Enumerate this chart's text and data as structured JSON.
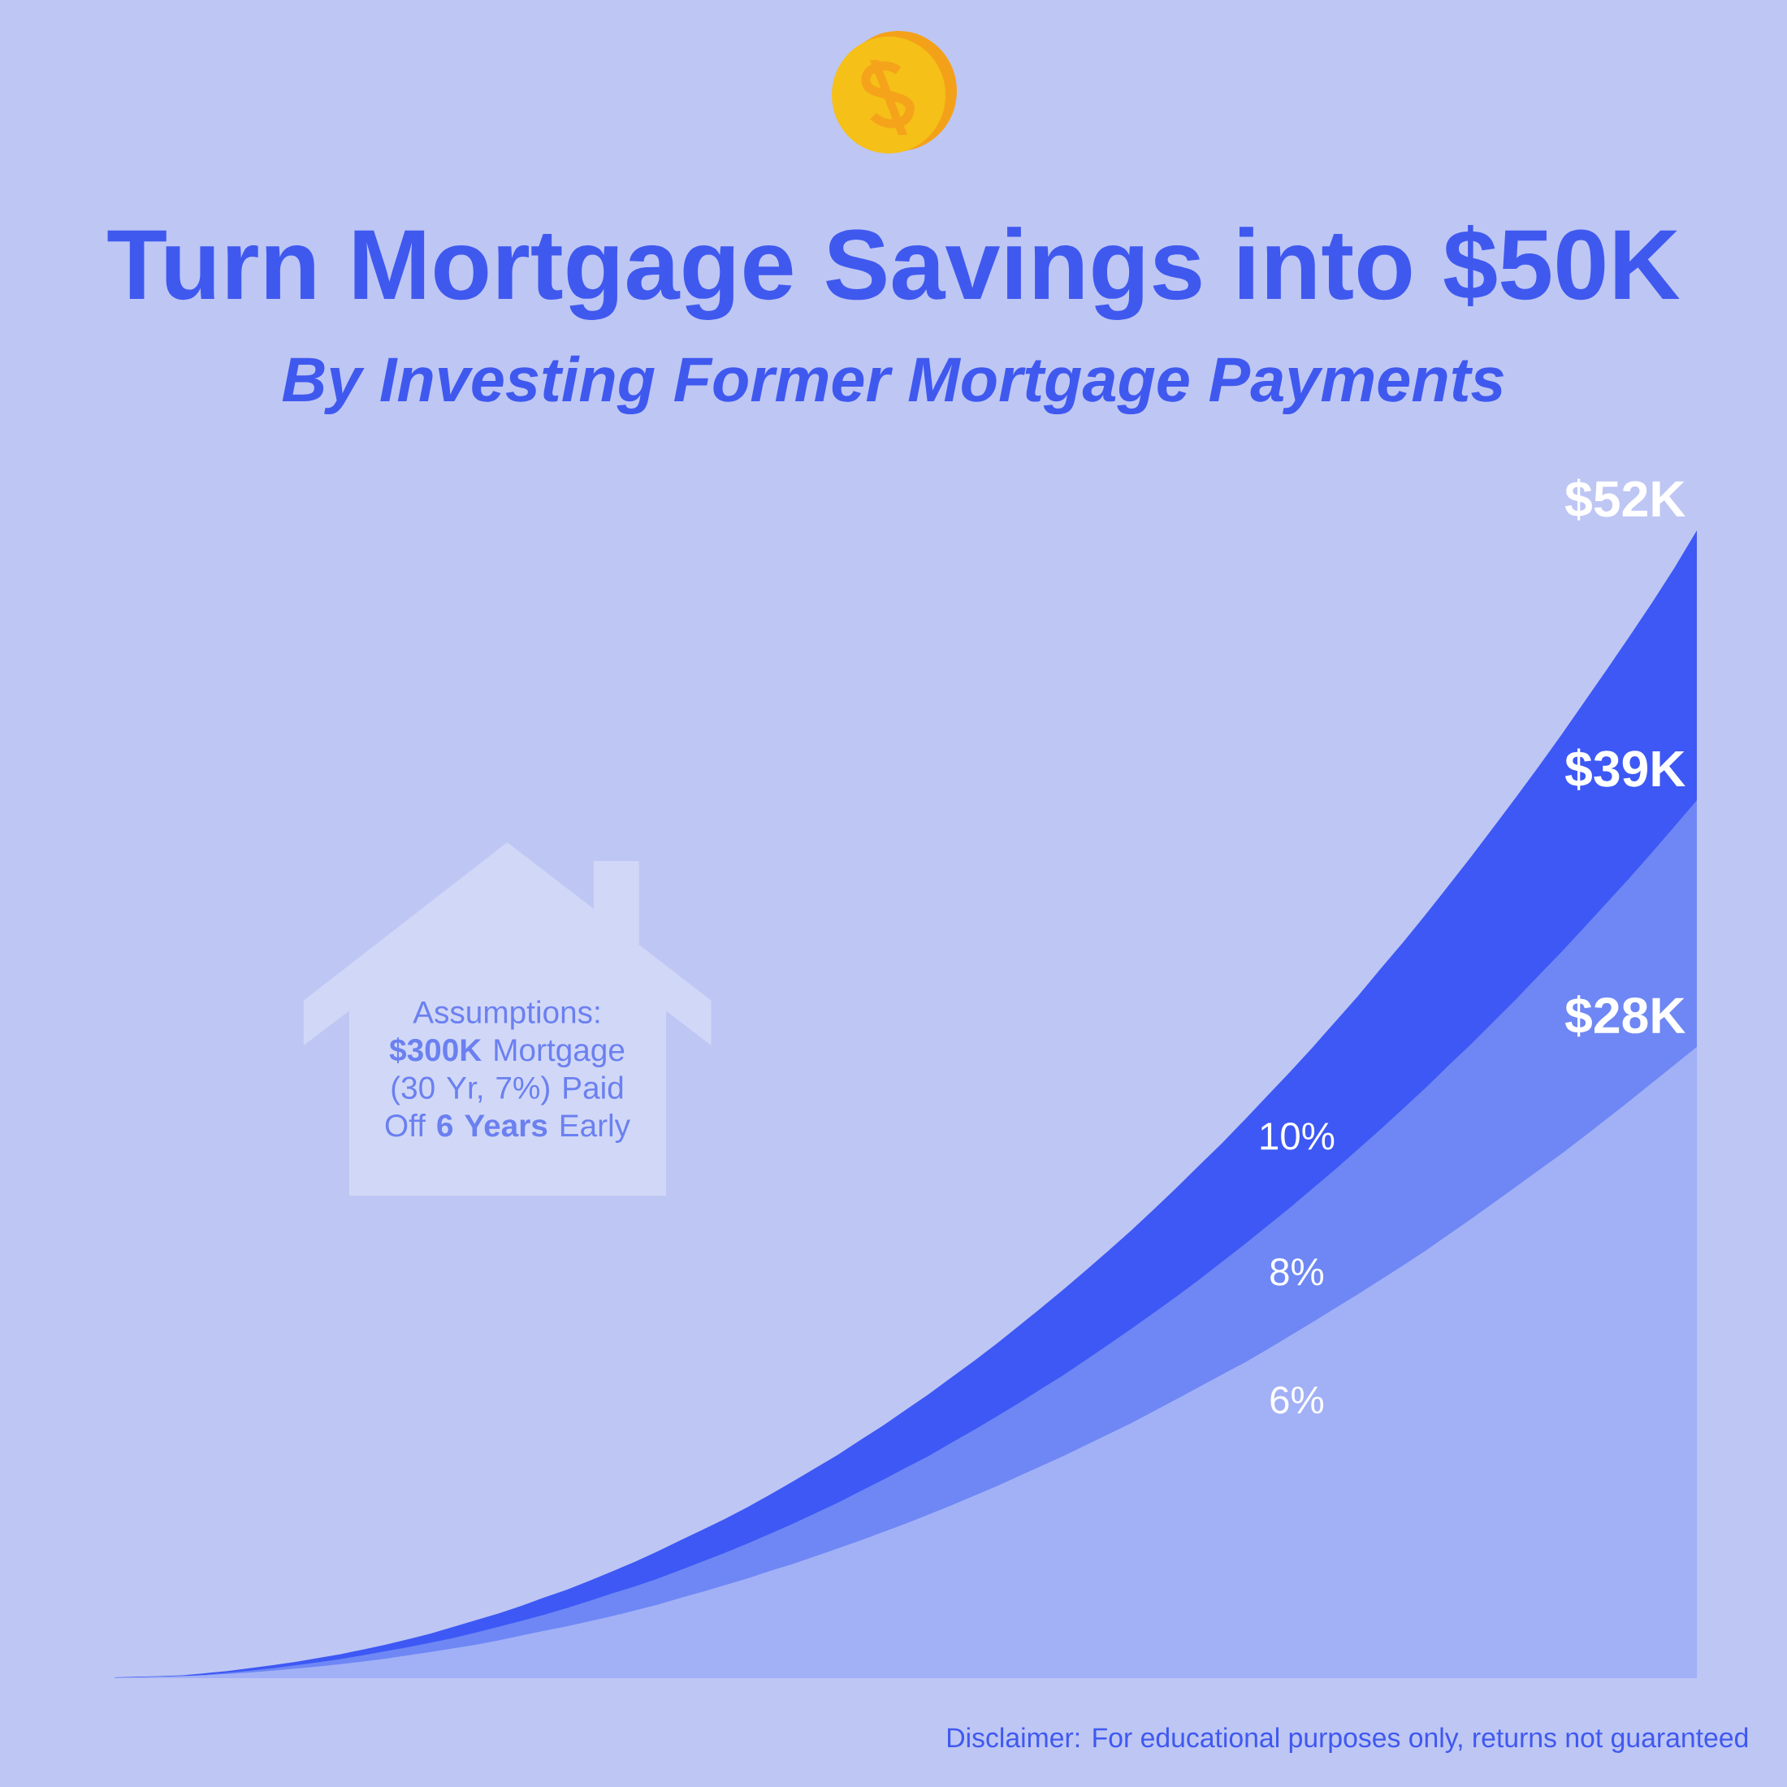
{
  "chart_data": {
    "type": "area",
    "title": "Turn Mortgage Savings into $50K",
    "subtitle": "By Investing Former Mortgage Payments",
    "categories": [
      null,
      null,
      null,
      null,
      null,
      null,
      null,
      null,
      null,
      null,
      null,
      null,
      null,
      null,
      null,
      null,
      null,
      null,
      null,
      null,
      null,
      null,
      null,
      null,
      null,
      null,
      null,
      null,
      null,
      null,
      null,
      null,
      null,
      null,
      null,
      null,
      null,
      null,
      null,
      null,
      null,
      null,
      null,
      null,
      null,
      null,
      null,
      null,
      null,
      null,
      null,
      null,
      null,
      null,
      null,
      null,
      null,
      null,
      null,
      null,
      null,
      null,
      null,
      null,
      null,
      null,
      null,
      null,
      null,
      null,
      null
    ],
    "series": [
      {
        "name": "10%",
        "color": "#3d58f4",
        "values": [
          0.04,
          0.06,
          0.09,
          0.13,
          0.22,
          0.32,
          0.45,
          0.58,
          0.73,
          0.9,
          1.08,
          1.29,
          1.51,
          1.75,
          2.01,
          2.31,
          2.61,
          2.91,
          3.25,
          3.62,
          3.97,
          4.37,
          4.79,
          5.22,
          5.69,
          6.18,
          6.66,
          7.16,
          7.69,
          8.25,
          8.84,
          9.44,
          10.04,
          10.71,
          11.36,
          12.06,
          12.75,
          13.5,
          14.24,
          15.02,
          15.83,
          16.65,
          17.49,
          18.36,
          19.24,
          20.15,
          21.1,
          22.07,
          23.07,
          24.06,
          25.11,
          26.18,
          27.25,
          28.36,
          29.51,
          30.66,
          31.88,
          33.08,
          34.33,
          35.61,
          36.91,
          38.25,
          39.6,
          40.98,
          42.4,
          43.86,
          45.32,
          46.81,
          48.32,
          49.9,
          51.6
        ],
        "value_labels": [
          null,
          null,
          null,
          null,
          null,
          null,
          null,
          null,
          null,
          null,
          null,
          null,
          null,
          null,
          null,
          null,
          null,
          null,
          null,
          null,
          null,
          null,
          null,
          null,
          null,
          null,
          null,
          null,
          null,
          null,
          null,
          null,
          null,
          null,
          null,
          null,
          null,
          null,
          null,
          null,
          null,
          null,
          null,
          null,
          null,
          null,
          null,
          null,
          null,
          null,
          null,
          null,
          null,
          null,
          null,
          null,
          null,
          null,
          null,
          null,
          null,
          null,
          null,
          null,
          null,
          null,
          null,
          null,
          null,
          null,
          "$52K"
        ]
      },
      {
        "name": "8%",
        "color": "#6e87f4",
        "values": [
          0.02,
          0.04,
          0.06,
          0.09,
          0.15,
          0.24,
          0.34,
          0.45,
          0.58,
          0.71,
          0.86,
          1.03,
          1.21,
          1.4,
          1.6,
          1.81,
          2.05,
          2.31,
          2.57,
          2.85,
          3.15,
          3.47,
          3.81,
          4.12,
          4.46,
          4.85,
          5.24,
          5.63,
          6.05,
          6.49,
          6.94,
          7.41,
          7.89,
          8.41,
          8.92,
          9.46,
          9.98,
          10.57,
          11.15,
          11.75,
          12.36,
          13.01,
          13.64,
          14.32,
          15.02,
          15.72,
          16.44,
          17.17,
          17.93,
          18.72,
          19.51,
          20.33,
          21.15,
          22.01,
          22.87,
          23.77,
          24.67,
          25.6,
          26.54,
          27.53,
          28.49,
          29.51,
          30.52,
          31.59,
          32.64,
          33.73,
          34.84,
          35.95,
          37.1,
          38.28,
          39.47
        ],
        "value_labels": [
          null,
          null,
          null,
          null,
          null,
          null,
          null,
          null,
          null,
          null,
          null,
          null,
          null,
          null,
          null,
          null,
          null,
          null,
          null,
          null,
          null,
          null,
          null,
          null,
          null,
          null,
          null,
          null,
          null,
          null,
          null,
          null,
          null,
          null,
          null,
          null,
          null,
          null,
          null,
          null,
          null,
          null,
          null,
          null,
          null,
          null,
          null,
          null,
          null,
          null,
          null,
          null,
          null,
          null,
          null,
          null,
          null,
          null,
          null,
          null,
          null,
          null,
          null,
          null,
          null,
          null,
          null,
          null,
          null,
          null,
          "$39K"
        ]
      },
      {
        "name": "6%",
        "color": "#a2b1f6",
        "values": [
          0.02,
          0.04,
          0.06,
          0.09,
          0.13,
          0.19,
          0.26,
          0.34,
          0.43,
          0.52,
          0.63,
          0.75,
          0.88,
          1.03,
          1.18,
          1.34,
          1.51,
          1.7,
          1.92,
          2.13,
          2.33,
          2.56,
          2.78,
          3.04,
          3.3,
          3.6,
          3.88,
          4.18,
          4.48,
          4.82,
          5.13,
          5.48,
          5.83,
          6.19,
          6.57,
          6.95,
          7.35,
          7.76,
          8.19,
          8.62,
          9.08,
          9.54,
          10.0,
          10.49,
          10.98,
          11.48,
          12.01,
          12.55,
          13.1,
          13.65,
          14.19,
          14.78,
          15.39,
          16.0,
          16.63,
          17.25,
          17.9,
          18.55,
          19.22,
          19.93,
          20.63,
          21.36,
          22.09,
          22.83,
          23.56,
          24.34,
          25.13,
          25.93,
          26.75,
          27.56,
          28.38
        ],
        "value_labels": [
          null,
          null,
          null,
          null,
          null,
          null,
          null,
          null,
          null,
          null,
          null,
          null,
          null,
          null,
          null,
          null,
          null,
          null,
          null,
          null,
          null,
          null,
          null,
          null,
          null,
          null,
          null,
          null,
          null,
          null,
          null,
          null,
          null,
          null,
          null,
          null,
          null,
          null,
          null,
          null,
          null,
          null,
          null,
          null,
          null,
          null,
          null,
          null,
          null,
          null,
          null,
          null,
          null,
          null,
          null,
          null,
          null,
          null,
          null,
          null,
          null,
          null,
          null,
          null,
          null,
          null,
          null,
          null,
          null,
          null,
          "$28K"
        ]
      }
    ],
    "tick_labels": false,
    "annotations": [
      "Assumptions: **$300K** Mortgage (30 Yr, 7%) Paid Off **6 Years** Early",
      "Disclaimer: For educational purposes only, returns not guaranteed"
    ]
  }
}
